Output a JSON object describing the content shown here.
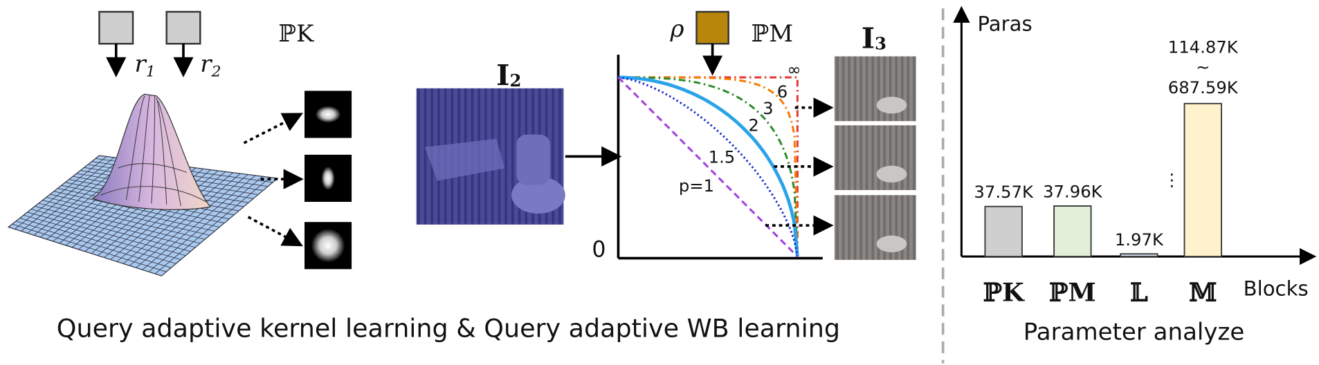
{
  "figure": {
    "kernel_label": "ℙK",
    "r1": "r",
    "r1_sub": "1",
    "r2": "r",
    "r2_sub": "2",
    "rho": "ρ",
    "wb_label": "ℙM",
    "input_label": "I",
    "input_sub": "2",
    "output_label": "I",
    "output_sub": "3",
    "origin": "0",
    "curve_labels": [
      "∞",
      "6",
      "3",
      "2",
      "1.5",
      "p=1"
    ],
    "caption": "Query adaptive kernel learning & Query adaptive WB learning"
  },
  "chart_data": {
    "type": "bar",
    "title": "Parameter analyze",
    "y_label": "Paras",
    "x_label": "Blocks",
    "categories": [
      "ℙK",
      "ℙM",
      "𝕃",
      "𝕄"
    ],
    "values": [
      37.57,
      37.96,
      1.97,
      114.87
    ],
    "value_labels": [
      "37.57K",
      "37.96K",
      "1.97K",
      "114.87K"
    ],
    "range_upper": {
      "category": 3,
      "value": 687.59,
      "label": "687.59K",
      "separator": "~"
    },
    "break_mark": "⋮",
    "colors": [
      "#d0cfcf",
      "#e2efd9",
      "#dae3f3",
      "#fff2cc"
    ],
    "ylim": [
      0,
      180
    ]
  }
}
